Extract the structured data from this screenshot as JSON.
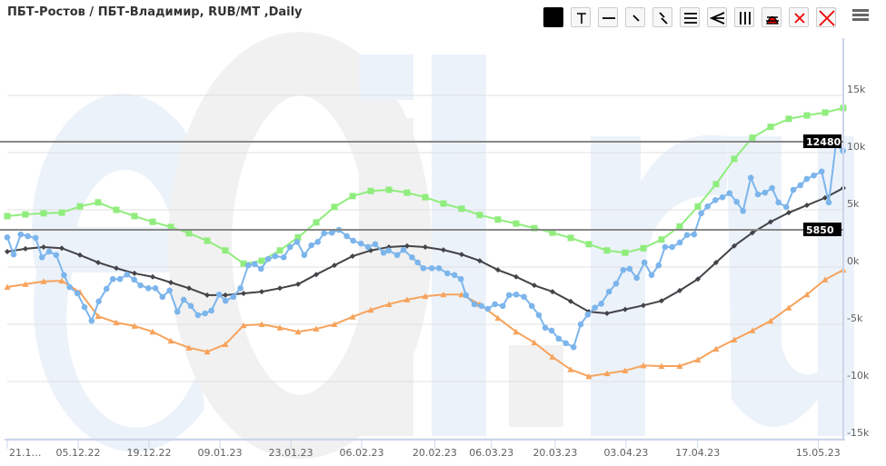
{
  "title": "ПБТ-Ростов / ПБТ-Владимир, RUB/MT ,Daily",
  "watermark": "eOil.ru",
  "toolbar": {
    "buttons": [
      "color-picker",
      "text-label",
      "horizontal-line",
      "ray",
      "parallel-lines",
      "horizontal-channel",
      "fan",
      "vertical-lines",
      "fibonacci",
      "delete-selected",
      "delete-all"
    ],
    "menu_icon": "hamburger-menu-icon"
  },
  "chart_data": {
    "type": "line",
    "title": "ПБТ-Ростов / ПБТ-Владимир, RUB/MT ,Daily",
    "xlabel": "",
    "ylabel": "",
    "ylim": [
      -15000,
      15000
    ],
    "yticks": [
      {
        "v": 15000,
        "label": "15k"
      },
      {
        "v": 10000,
        "label": "10k"
      },
      {
        "v": 5000,
        "label": "5k"
      },
      {
        "v": 0,
        "label": "0k"
      },
      {
        "v": -5000,
        "label": "-5k"
      },
      {
        "v": -10000,
        "label": "-10k"
      },
      {
        "v": -15000,
        "label": "-15k"
      }
    ],
    "xlim": [
      0,
      118
    ],
    "xticks": [
      {
        "x": 0,
        "label": "21.1…"
      },
      {
        "x": 10,
        "label": "05.12.22"
      },
      {
        "x": 20,
        "label": "19.12.22"
      },
      {
        "x": 30,
        "label": "09.01.23"
      },
      {
        "x": 40,
        "label": "23.01.23"
      },
      {
        "x": 50,
        "label": "06.02.23"
      },
      {
        "x": 60.3,
        "label": "20.02.23"
      },
      {
        "x": 68.3,
        "label": "06.03.23"
      },
      {
        "x": 77.3,
        "label": "20.03.23"
      },
      {
        "x": 87.3,
        "label": "03.04.23"
      },
      {
        "x": 97.4,
        "label": "17.04.23"
      },
      {
        "x": 114.4,
        "label": "15.05.23"
      }
    ],
    "grid": true,
    "reference_lines": [
      {
        "value": 12480,
        "label": "12480"
      },
      {
        "value": 5850,
        "label": "5850"
      }
    ],
    "colors": {
      "spread": "#7cb5ec",
      "average": "#434348",
      "upper": "#90ed7d",
      "lower": "#f7a35c"
    },
    "series": [
      {
        "name": "upper",
        "marker": "square",
        "x_start": 0,
        "x_step": 2.564,
        "values": [
          4450,
          4600,
          4700,
          4750,
          5300,
          5650,
          5000,
          4450,
          3950,
          3500,
          2950,
          2300,
          1450,
          300,
          550,
          1450,
          2600,
          3900,
          5250,
          6200,
          6650,
          6750,
          6500,
          6100,
          5550,
          5100,
          4550,
          4150,
          3800,
          3400,
          3000,
          2550,
          2000,
          1450,
          1250,
          1650,
          2400,
          3550,
          5300,
          7250,
          9450,
          11300,
          12250,
          12950,
          13250,
          13500,
          13900
        ]
      },
      {
        "name": "lower",
        "marker": "triangle",
        "x_start": 0,
        "x_step": 2.564,
        "values": [
          -1750,
          -1500,
          -1250,
          -1200,
          -2200,
          -4300,
          -4850,
          -5150,
          -5650,
          -6450,
          -7050,
          -7400,
          -6750,
          -5100,
          -5000,
          -5300,
          -5650,
          -5400,
          -5000,
          -4350,
          -3750,
          -3250,
          -2850,
          -2550,
          -2400,
          -2400,
          -3250,
          -4450,
          -5650,
          -6600,
          -7850,
          -8950,
          -9550,
          -9300,
          -9050,
          -8600,
          -8650,
          -8650,
          -8100,
          -7150,
          -6350,
          -5550,
          -4700,
          -3550,
          -2400,
          -1100,
          -250
        ]
      },
      {
        "name": "average",
        "marker": "diamond",
        "x_start": 0,
        "x_step": 2.564,
        "values": [
          1350,
          1600,
          1750,
          1650,
          1050,
          400,
          -100,
          -550,
          -850,
          -1350,
          -1850,
          -2450,
          -2450,
          -2300,
          -2150,
          -1850,
          -1500,
          -650,
          150,
          950,
          1450,
          1750,
          1850,
          1750,
          1500,
          1100,
          550,
          -250,
          -850,
          -1600,
          -2150,
          -3000,
          -3900,
          -4050,
          -3700,
          -3350,
          -2950,
          -2050,
          -1050,
          400,
          1850,
          3000,
          3950,
          4750,
          5400,
          6050,
          6900
        ]
      },
      {
        "name": "spread",
        "marker": "circle",
        "points": [
          [
            0,
            2600
          ],
          [
            0.9,
            1100
          ],
          [
            1.9,
            2850
          ],
          [
            2.9,
            2700
          ],
          [
            4,
            2550
          ],
          [
            4.9,
            850
          ],
          [
            5.9,
            1350
          ],
          [
            6.9,
            1050
          ],
          [
            8,
            -700
          ],
          [
            8.8,
            -1750
          ],
          [
            9.9,
            -2300
          ],
          [
            10.9,
            -3500
          ],
          [
            11.9,
            -4700
          ],
          [
            12.9,
            -3000
          ],
          [
            14,
            -1900
          ],
          [
            14.9,
            -1050
          ],
          [
            15.9,
            -1050
          ],
          [
            16.9,
            -650
          ],
          [
            17.9,
            -1100
          ],
          [
            18.8,
            -1600
          ],
          [
            19.9,
            -1850
          ],
          [
            20.9,
            -1850
          ],
          [
            21.9,
            -2600
          ],
          [
            22.9,
            -2050
          ],
          [
            24,
            -3900
          ],
          [
            24.9,
            -2850
          ],
          [
            25.9,
            -3400
          ],
          [
            26.9,
            -4200
          ],
          [
            27.9,
            -4050
          ],
          [
            28.8,
            -3800
          ],
          [
            29.9,
            -2400
          ],
          [
            30.8,
            -2950
          ],
          [
            31.9,
            -2600
          ],
          [
            32.9,
            -1850
          ],
          [
            34,
            150
          ],
          [
            34.9,
            250
          ],
          [
            35.8,
            -150
          ],
          [
            36.8,
            700
          ],
          [
            37.8,
            950
          ],
          [
            39,
            850
          ],
          [
            39.9,
            1750
          ],
          [
            40.9,
            2200
          ],
          [
            41.9,
            1050
          ],
          [
            42.9,
            1900
          ],
          [
            43.8,
            2200
          ],
          [
            44.7,
            2950
          ],
          [
            45.8,
            3000
          ],
          [
            46.8,
            3250
          ],
          [
            47.9,
            2700
          ],
          [
            48.8,
            2300
          ],
          [
            49.9,
            2050
          ],
          [
            50.9,
            1750
          ],
          [
            51.9,
            2000
          ],
          [
            53.1,
            1250
          ],
          [
            53.8,
            1450
          ],
          [
            55,
            1050
          ],
          [
            55.9,
            1500
          ],
          [
            57.1,
            850
          ],
          [
            57.9,
            400
          ],
          [
            58.7,
            -100
          ],
          [
            59.9,
            -100
          ],
          [
            60.9,
            -100
          ],
          [
            62.1,
            -550
          ],
          [
            63.1,
            -700
          ],
          [
            64,
            -1050
          ],
          [
            64.7,
            -2450
          ],
          [
            65.9,
            -3250
          ],
          [
            66.9,
            -3400
          ],
          [
            67.8,
            -3650
          ],
          [
            68.8,
            -3250
          ],
          [
            69.9,
            -3400
          ],
          [
            70.8,
            -2450
          ],
          [
            71.8,
            -2400
          ],
          [
            72.9,
            -2600
          ],
          [
            74,
            -3400
          ],
          [
            75,
            -4200
          ],
          [
            75.9,
            -5300
          ],
          [
            76.8,
            -5550
          ],
          [
            77.8,
            -6250
          ],
          [
            78.8,
            -6650
          ],
          [
            79.9,
            -7000
          ],
          [
            80.9,
            -5000
          ],
          [
            81.9,
            -4150
          ],
          [
            82.9,
            -3550
          ],
          [
            83.8,
            -3200
          ],
          [
            84.9,
            -2150
          ],
          [
            85.9,
            -1450
          ],
          [
            86.9,
            -250
          ],
          [
            87.8,
            -150
          ],
          [
            88.8,
            -950
          ],
          [
            89.9,
            400
          ],
          [
            90.9,
            -700
          ],
          [
            91.9,
            150
          ],
          [
            92.8,
            1750
          ],
          [
            93.8,
            1750
          ],
          [
            94.9,
            2150
          ],
          [
            95.9,
            2800
          ],
          [
            96.9,
            2850
          ],
          [
            97.9,
            4700
          ],
          [
            98.8,
            5300
          ],
          [
            99.9,
            5850
          ],
          [
            100.9,
            6100
          ],
          [
            101.9,
            6450
          ],
          [
            102.9,
            5700
          ],
          [
            103.8,
            4900
          ],
          [
            104.9,
            7800
          ],
          [
            105.9,
            6350
          ],
          [
            106.9,
            6500
          ],
          [
            107.9,
            6900
          ],
          [
            108.8,
            5650
          ],
          [
            109.9,
            5250
          ],
          [
            110.9,
            6750
          ],
          [
            111.9,
            7150
          ],
          [
            112.8,
            7700
          ],
          [
            113.8,
            8000
          ],
          [
            114.9,
            8350
          ],
          [
            115.9,
            5650
          ],
          [
            116.9,
            10700
          ],
          [
            117.9,
            10150
          ]
        ]
      }
    ]
  }
}
